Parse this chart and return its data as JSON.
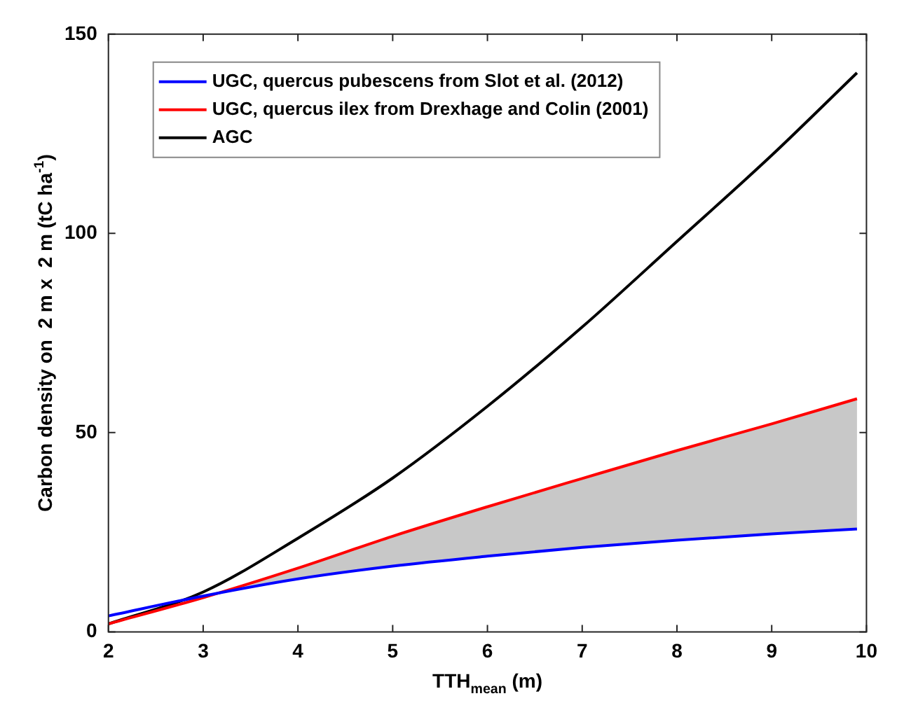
{
  "chart_data": {
    "type": "line",
    "xlabel": "TTH$_{mean}$ (m)",
    "ylabel": "Carbon density on  2 m x  2 m (tC ha$^{-1}$)",
    "x": [
      2,
      3,
      4,
      5,
      6,
      7,
      8,
      9,
      9.9
    ],
    "series": [
      {
        "name": "UGC, quercus pubescens from Slot et al. (2012)",
        "color": "#0000ff",
        "values": [
          4,
          9,
          13.3,
          16.5,
          19,
          21.2,
          23,
          24.6,
          25.8
        ]
      },
      {
        "name": "UGC, quercus ilex from Drexhage and Colin (2001)",
        "color": "#ff0000",
        "values": [
          2,
          8.6,
          16,
          24,
          31.4,
          38.5,
          45.5,
          52.2,
          58.5
        ],
        "lower": [
          null,
          9,
          13.3,
          16.5,
          19,
          21.2,
          23,
          24.6,
          25.8
        ],
        "upper": [
          null,
          8.6,
          16,
          24,
          31.4,
          38.5,
          45.5,
          52.2,
          58.5
        ]
      },
      {
        "name": "AGC",
        "color": "#000000",
        "values": [
          2,
          10,
          23.5,
          38.6,
          56.6,
          76.5,
          98,
          119.6,
          140.3
        ]
      }
    ],
    "xlim": [
      2,
      10
    ],
    "xticks": [
      2,
      3,
      4,
      5,
      6,
      7,
      8,
      9,
      10
    ],
    "ylim": [
      0,
      150
    ],
    "yticks": [
      0,
      50,
      100,
      150
    ],
    "grid": false,
    "legend": "top left",
    "marker": "none",
    "line_style": "solid"
  }
}
